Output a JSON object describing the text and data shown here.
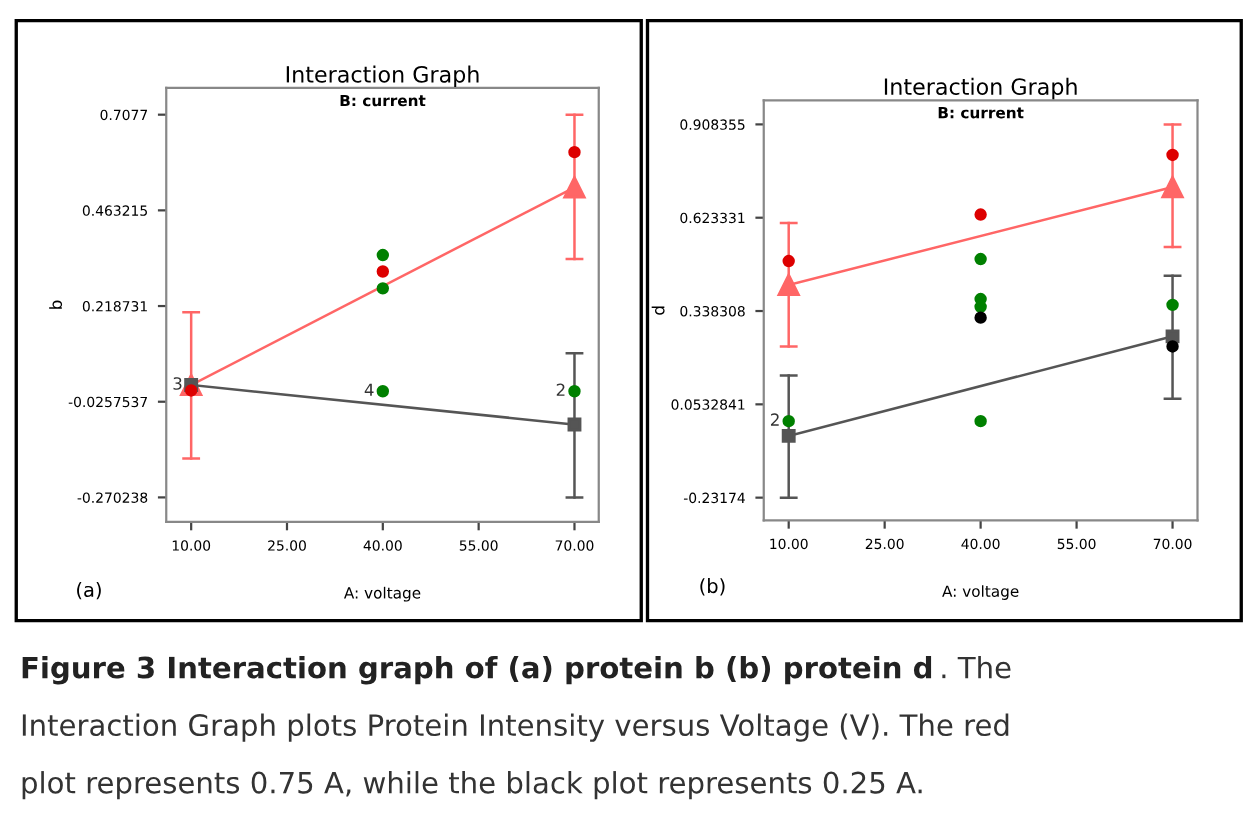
{
  "chart_data": [
    {
      "type": "line",
      "title": "Interaction Graph",
      "subtitle": "B: current",
      "xlabel": "A: voltage",
      "ylabel": "b",
      "xlim": [
        6.1,
        73.8
      ],
      "ylim": [
        -0.333,
        0.776
      ],
      "xticks": [
        {
          "value": 10,
          "label": "10.00"
        },
        {
          "value": 25,
          "label": "25.00"
        },
        {
          "value": 40,
          "label": "40.00"
        },
        {
          "value": 55,
          "label": "55.00"
        },
        {
          "value": 70,
          "label": "70.00"
        }
      ],
      "yticks": [
        -0.270238,
        -0.0257537,
        0.218731,
        0.463215,
        0.7077
      ],
      "grid": false,
      "legend": false,
      "series": [
        {
          "type": "line",
          "color": "#ff6666",
          "x": [
            10,
            70
          ],
          "values": [
            0.017,
            0.522
          ],
          "errors": [
            [
              -0.171,
              0.203
            ],
            [
              0.339,
              0.7077
            ]
          ],
          "marker": "triangle"
        },
        {
          "type": "line",
          "color": "#555555",
          "x": [
            10,
            70
          ],
          "values": [
            0.017,
            -0.084
          ],
          "errors": [
            null,
            [
              -0.270238,
              0.098
            ]
          ],
          "marker": "square"
        },
        {
          "type": "scatter",
          "color": "#dd0000",
          "x": [
            10,
            40,
            70
          ],
          "values": [
            0.003,
            0.307,
            0.612
          ],
          "marker": "circle"
        },
        {
          "type": "scatter",
          "color": "#008000",
          "x": [
            40,
            40,
            40,
            70
          ],
          "values": [
            0.349,
            0.264,
            0.001,
            0.001
          ],
          "marker": "circle"
        }
      ],
      "annotations": [
        "(a)",
        {
          "text": "3",
          "x": 10,
          "y": 0.017
        },
        {
          "text": "4",
          "x": 40,
          "y": 0.001
        },
        {
          "text": "2",
          "x": 70,
          "y": 0.001
        }
      ]
    },
    {
      "type": "line",
      "title": "Interaction Graph",
      "subtitle": "B: current",
      "xlabel": "A: voltage",
      "ylabel": "d",
      "xlim": [
        6.1,
        73.9
      ],
      "ylim": [
        -0.301,
        0.982
      ],
      "xticks": [
        {
          "value": 10,
          "label": "10.00"
        },
        {
          "value": 25,
          "label": "25.00"
        },
        {
          "value": 40,
          "label": "40.00"
        },
        {
          "value": 55,
          "label": "55.00"
        },
        {
          "value": 70,
          "label": "70.00"
        }
      ],
      "yticks": [
        -0.23174,
        0.0532841,
        0.338308,
        0.623331,
        0.908355
      ],
      "grid": false,
      "legend": false,
      "series": [
        {
          "type": "line",
          "color": "#ff6666",
          "x": [
            10,
            70
          ],
          "values": [
            0.418,
            0.717
          ],
          "errors": [
            [
              0.23,
              0.607
            ],
            [
              0.534,
              0.908355
            ]
          ],
          "marker": "triangle"
        },
        {
          "type": "line",
          "color": "#555555",
          "x": [
            10,
            70
          ],
          "values": [
            -0.043,
            0.261
          ],
          "errors": [
            [
              -0.23174,
              0.141
            ],
            [
              0.07,
              0.446
            ]
          ],
          "marker": "square"
        },
        {
          "type": "scatter",
          "color": "#dd0000",
          "x": [
            10,
            40,
            70
          ],
          "values": [
            0.491,
            0.633,
            0.815
          ],
          "marker": "circle"
        },
        {
          "type": "scatter",
          "color": "#008000",
          "x": [
            10,
            40,
            40,
            40,
            40,
            70
          ],
          "values": [
            0.002,
            0.497,
            0.375,
            0.351,
            0.002,
            0.357
          ],
          "marker": "circle"
        },
        {
          "type": "scatter",
          "color": "#000000",
          "x": [
            40,
            70
          ],
          "values": [
            0.318,
            0.23
          ],
          "marker": "circle"
        }
      ],
      "annotations": [
        "(b)",
        {
          "text": "2",
          "x": 10,
          "y": 0.002
        }
      ]
    },
    {
      "type": "other",
      "annotations": [
        "Figure 3 Interaction graph of (a) protein b (b) protein d",
        ". The\nInteraction Graph plots Protein Intensity versus Voltage (V). The red\nplot represents 0.75 A, while the black plot represents 0.25 A."
      ]
    }
  ]
}
